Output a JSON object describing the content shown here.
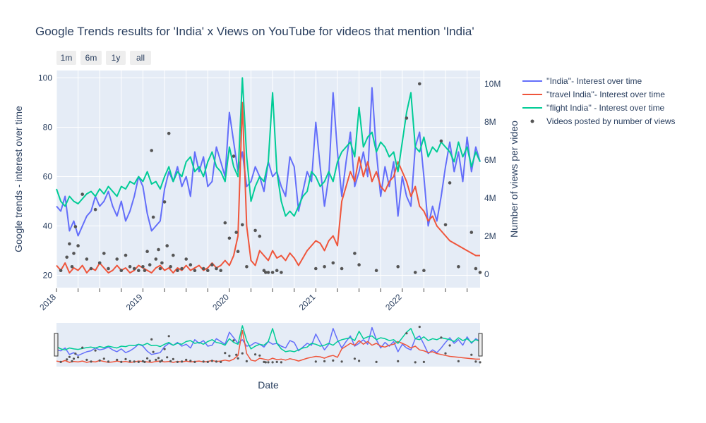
{
  "chart_data": {
    "type": "line",
    "title": "Google Trends results for 'India' x Views on YouTube for videos that mention 'India'",
    "xlabel": "Date",
    "ylabel": "Google trends - interest over time",
    "y2label": "Number of views per video",
    "x_range": [
      2018.0,
      2022.9
    ],
    "ylim": [
      15,
      103
    ],
    "y2lim": [
      -700000,
      10700000
    ],
    "x_ticks": [
      2018,
      2019,
      2020,
      2021,
      2022
    ],
    "y_ticks": [
      20,
      40,
      60,
      80,
      100
    ],
    "y2_ticks": [
      {
        "value": 0,
        "label": "0"
      },
      {
        "value": 2000000,
        "label": "2M"
      },
      {
        "value": 4000000,
        "label": "4M"
      },
      {
        "value": 6000000,
        "label": "6M"
      },
      {
        "value": 8000000,
        "label": "8M"
      },
      {
        "value": 10000000,
        "label": "10M"
      }
    ],
    "range_buttons": [
      "1m",
      "6m",
      "1y",
      "all"
    ],
    "legend": [
      "''India''- Interest over time",
      "''travel India''- Interest over time",
      "''flight India'' - Interest over time",
      "Videos posted by number of views"
    ],
    "series": [
      {
        "name": "''India''- Interest over time",
        "color": "#636efa",
        "x": [
          2018.0,
          2018.05,
          2018.1,
          2018.15,
          2018.2,
          2018.25,
          2018.3,
          2018.35,
          2018.4,
          2018.45,
          2018.5,
          2018.55,
          2018.6,
          2018.65,
          2018.7,
          2018.75,
          2018.8,
          2018.85,
          2018.9,
          2018.95,
          2019.0,
          2019.05,
          2019.1,
          2019.15,
          2019.2,
          2019.25,
          2019.3,
          2019.35,
          2019.4,
          2019.45,
          2019.5,
          2019.55,
          2019.6,
          2019.65,
          2019.7,
          2019.75,
          2019.8,
          2019.85,
          2019.9,
          2019.95,
          2020.0,
          2020.05,
          2020.1,
          2020.15,
          2020.2,
          2020.25,
          2020.3,
          2020.35,
          2020.4,
          2020.45,
          2020.5,
          2020.55,
          2020.6,
          2020.65,
          2020.7,
          2020.75,
          2020.8,
          2020.85,
          2020.9,
          2020.95,
          2021.0,
          2021.05,
          2021.1,
          2021.15,
          2021.2,
          2021.25,
          2021.3,
          2021.35,
          2021.4,
          2021.45,
          2021.5,
          2021.55,
          2021.6,
          2021.65,
          2021.7,
          2021.75,
          2021.8,
          2021.85,
          2021.9,
          2021.95,
          2022.0,
          2022.05,
          2022.1,
          2022.15,
          2022.2,
          2022.25,
          2022.3,
          2022.35,
          2022.4,
          2022.45,
          2022.5,
          2022.55,
          2022.6,
          2022.65,
          2022.7,
          2022.75,
          2022.8,
          2022.85,
          2022.9
        ],
        "y": [
          48,
          46,
          52,
          38,
          42,
          36,
          40,
          44,
          46,
          52,
          48,
          50,
          54,
          48,
          44,
          50,
          42,
          46,
          52,
          60,
          56,
          45,
          38,
          40,
          42,
          55,
          62,
          58,
          64,
          56,
          60,
          52,
          70,
          62,
          68,
          56,
          58,
          72,
          66,
          60,
          86,
          74,
          62,
          70,
          56,
          58,
          64,
          60,
          54,
          66,
          60,
          62,
          56,
          52,
          68,
          64,
          46,
          54,
          62,
          58,
          82,
          64,
          48,
          60,
          94,
          70,
          52,
          66,
          78,
          56,
          62,
          70,
          60,
          96,
          70,
          52,
          64,
          56,
          66,
          44,
          60,
          52,
          48,
          72,
          78,
          60,
          40,
          48,
          42,
          52,
          64,
          74,
          62,
          70,
          58,
          76,
          62,
          72,
          66
        ]
      },
      {
        "name": "''travel India''- Interest over time",
        "color": "#ef553b",
        "x": [
          2018.0,
          2018.05,
          2018.1,
          2018.15,
          2018.2,
          2018.25,
          2018.3,
          2018.35,
          2018.4,
          2018.45,
          2018.5,
          2018.55,
          2018.6,
          2018.65,
          2018.7,
          2018.75,
          2018.8,
          2018.85,
          2018.9,
          2018.95,
          2019.0,
          2019.05,
          2019.1,
          2019.15,
          2019.2,
          2019.25,
          2019.3,
          2019.35,
          2019.4,
          2019.45,
          2019.5,
          2019.55,
          2019.6,
          2019.65,
          2019.7,
          2019.75,
          2019.8,
          2019.85,
          2019.9,
          2019.95,
          2020.0,
          2020.05,
          2020.1,
          2020.15,
          2020.2,
          2020.25,
          2020.3,
          2020.35,
          2020.4,
          2020.45,
          2020.5,
          2020.55,
          2020.6,
          2020.65,
          2020.7,
          2020.75,
          2020.8,
          2020.85,
          2020.9,
          2020.95,
          2021.0,
          2021.05,
          2021.1,
          2021.15,
          2021.2,
          2021.25,
          2021.3,
          2021.35,
          2021.4,
          2021.45,
          2021.5,
          2021.55,
          2021.6,
          2021.65,
          2021.7,
          2021.75,
          2021.8,
          2021.85,
          2021.9,
          2021.95,
          2022.0,
          2022.05,
          2022.1,
          2022.15,
          2022.2,
          2022.25,
          2022.3,
          2022.35,
          2022.4,
          2022.45,
          2022.5,
          2022.55,
          2022.6,
          2022.65,
          2022.7,
          2022.75,
          2022.8,
          2022.85,
          2022.9
        ],
        "y": [
          24,
          22,
          25,
          21,
          23,
          22,
          24,
          21,
          23,
          22,
          25,
          23,
          21,
          22,
          24,
          22,
          23,
          21,
          22,
          24,
          23,
          22,
          21,
          23,
          24,
          22,
          23,
          21,
          23,
          22,
          24,
          22,
          23,
          24,
          22,
          23,
          25,
          23,
          24,
          26,
          24,
          28,
          36,
          90,
          40,
          26,
          24,
          30,
          28,
          26,
          30,
          27,
          28,
          26,
          29,
          27,
          24,
          27,
          30,
          32,
          34,
          33,
          30,
          34,
          36,
          32,
          50,
          56,
          62,
          58,
          68,
          60,
          66,
          58,
          62,
          56,
          54,
          58,
          60,
          66,
          62,
          58,
          52,
          56,
          48,
          46,
          42,
          44,
          40,
          38,
          36,
          34,
          33,
          32,
          31,
          30,
          29,
          28,
          28
        ]
      },
      {
        "name": "''flight India'' - Interest over time",
        "color": "#00cc96",
        "x": [
          2018.0,
          2018.05,
          2018.1,
          2018.15,
          2018.2,
          2018.25,
          2018.3,
          2018.35,
          2018.4,
          2018.45,
          2018.5,
          2018.55,
          2018.6,
          2018.65,
          2018.7,
          2018.75,
          2018.8,
          2018.85,
          2018.9,
          2018.95,
          2019.0,
          2019.05,
          2019.1,
          2019.15,
          2019.2,
          2019.25,
          2019.3,
          2019.35,
          2019.4,
          2019.45,
          2019.5,
          2019.55,
          2019.6,
          2019.65,
          2019.7,
          2019.75,
          2019.8,
          2019.85,
          2019.9,
          2019.95,
          2020.0,
          2020.05,
          2020.1,
          2020.15,
          2020.2,
          2020.25,
          2020.3,
          2020.35,
          2020.4,
          2020.45,
          2020.5,
          2020.55,
          2020.6,
          2020.65,
          2020.7,
          2020.75,
          2020.8,
          2020.85,
          2020.9,
          2020.95,
          2021.0,
          2021.05,
          2021.1,
          2021.15,
          2021.2,
          2021.25,
          2021.3,
          2021.35,
          2021.4,
          2021.45,
          2021.5,
          2021.55,
          2021.6,
          2021.65,
          2021.7,
          2021.75,
          2021.8,
          2021.85,
          2021.9,
          2021.95,
          2022.0,
          2022.05,
          2022.1,
          2022.15,
          2022.2,
          2022.25,
          2022.3,
          2022.35,
          2022.4,
          2022.45,
          2022.5,
          2022.55,
          2022.6,
          2022.65,
          2022.7,
          2022.75,
          2022.8,
          2022.85,
          2022.9
        ],
        "y": [
          55,
          50,
          48,
          52,
          50,
          49,
          51,
          53,
          54,
          52,
          55,
          53,
          56,
          54,
          52,
          56,
          55,
          58,
          57,
          60,
          58,
          62,
          57,
          58,
          55,
          60,
          64,
          58,
          62,
          60,
          66,
          68,
          62,
          64,
          60,
          66,
          70,
          64,
          62,
          58,
          72,
          64,
          60,
          100,
          68,
          50,
          56,
          60,
          58,
          66,
          94,
          62,
          50,
          44,
          46,
          44,
          48,
          52,
          54,
          62,
          60,
          56,
          58,
          62,
          58,
          66,
          70,
          72,
          74,
          68,
          88,
          72,
          76,
          78,
          70,
          74,
          72,
          68,
          70,
          62,
          74,
          86,
          94,
          72,
          70,
          76,
          68,
          72,
          70,
          74,
          72,
          70,
          66,
          74,
          68,
          72,
          64,
          70,
          66
        ]
      }
    ],
    "scatter": {
      "name": "Videos posted by number of views",
      "color": "#555555",
      "points": [
        [
          2018.05,
          0.2
        ],
        [
          2018.12,
          0.9
        ],
        [
          2018.15,
          1.6
        ],
        [
          2018.18,
          0.4
        ],
        [
          2018.2,
          1.1
        ],
        [
          2018.22,
          2.5
        ],
        [
          2018.25,
          1.5
        ],
        [
          2018.3,
          4.2
        ],
        [
          2018.35,
          0.8
        ],
        [
          2018.4,
          0.3
        ],
        [
          2018.45,
          3.4
        ],
        [
          2018.5,
          0.6
        ],
        [
          2018.55,
          1.1
        ],
        [
          2018.6,
          0.3
        ],
        [
          2018.7,
          0.8
        ],
        [
          2018.75,
          0.2
        ],
        [
          2018.8,
          1.0
        ],
        [
          2018.85,
          0.4
        ],
        [
          2018.9,
          0.3
        ],
        [
          2018.95,
          0.2
        ],
        [
          2019.0,
          0.4
        ],
        [
          2019.02,
          0.2
        ],
        [
          2019.05,
          1.2
        ],
        [
          2019.08,
          0.5
        ],
        [
          2019.1,
          6.5
        ],
        [
          2019.12,
          3.0
        ],
        [
          2019.15,
          0.8
        ],
        [
          2019.18,
          1.3
        ],
        [
          2019.2,
          0.3
        ],
        [
          2019.22,
          0.6
        ],
        [
          2019.25,
          3.8
        ],
        [
          2019.28,
          1.5
        ],
        [
          2019.3,
          7.4
        ],
        [
          2019.32,
          0.4
        ],
        [
          2019.35,
          1.0
        ],
        [
          2019.4,
          0.2
        ],
        [
          2019.45,
          0.3
        ],
        [
          2019.5,
          0.8
        ],
        [
          2019.55,
          0.5
        ],
        [
          2019.6,
          0.2
        ],
        [
          2019.7,
          0.3
        ],
        [
          2019.75,
          0.2
        ],
        [
          2019.8,
          0.5
        ],
        [
          2019.85,
          0.3
        ],
        [
          2019.9,
          0.2
        ],
        [
          2019.95,
          2.7
        ],
        [
          2020.0,
          1.9
        ],
        [
          2020.05,
          6.2
        ],
        [
          2020.08,
          2.2
        ],
        [
          2020.1,
          1.2
        ],
        [
          2020.15,
          2.6
        ],
        [
          2020.2,
          0.4
        ],
        [
          2020.3,
          2.3
        ],
        [
          2020.35,
          2.0
        ],
        [
          2020.4,
          0.2
        ],
        [
          2020.42,
          0.1
        ],
        [
          2020.45,
          0.1
        ],
        [
          2020.5,
          0.1
        ],
        [
          2020.55,
          0.2
        ],
        [
          2020.6,
          0.1
        ],
        [
          2021.0,
          0.3
        ],
        [
          2021.1,
          0.4
        ],
        [
          2021.2,
          0.6
        ],
        [
          2021.3,
          0.3
        ],
        [
          2021.45,
          1.1
        ],
        [
          2021.5,
          0.5
        ],
        [
          2021.7,
          0.2
        ],
        [
          2021.95,
          0.4
        ],
        [
          2022.05,
          8.2
        ],
        [
          2022.15,
          0.1
        ],
        [
          2022.2,
          10.0
        ],
        [
          2022.25,
          0.2
        ],
        [
          2022.45,
          7.0
        ],
        [
          2022.5,
          2.6
        ],
        [
          2022.55,
          4.8
        ],
        [
          2022.65,
          0.4
        ],
        [
          2022.8,
          2.2
        ],
        [
          2022.85,
          0.3
        ],
        [
          2022.9,
          0.1
        ]
      ]
    }
  }
}
